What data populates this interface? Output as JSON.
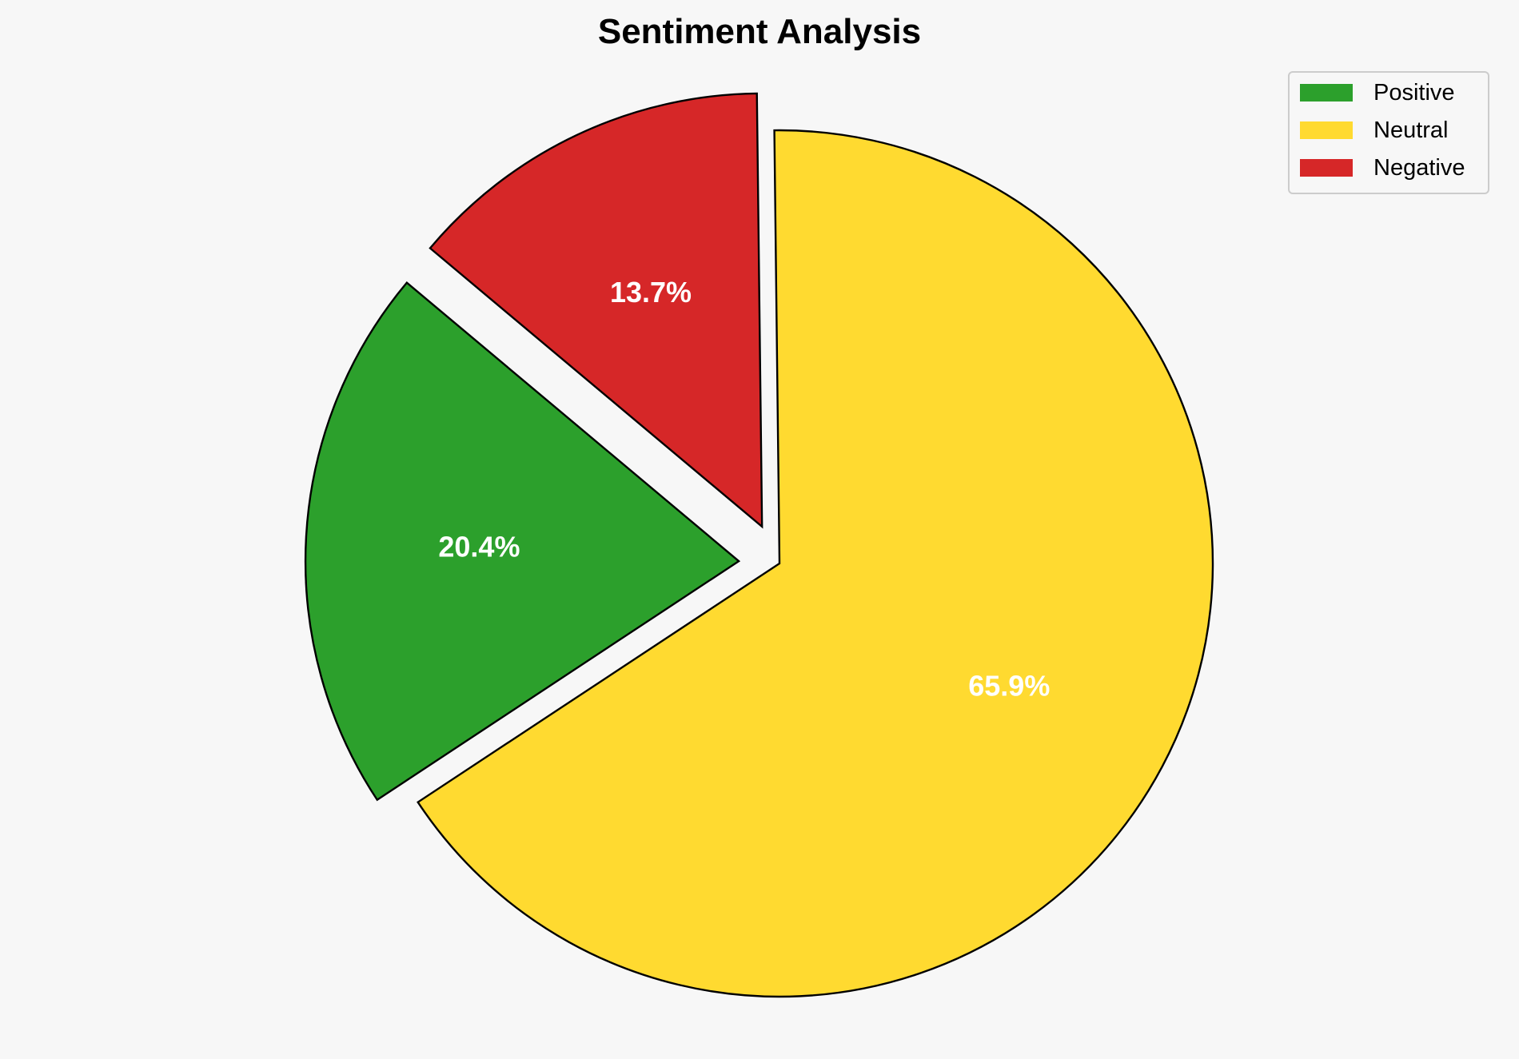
{
  "chart_data": {
    "type": "pie",
    "title": "Sentiment Analysis",
    "categories": [
      "Positive",
      "Neutral",
      "Negative"
    ],
    "values": [
      20.4,
      65.9,
      13.7
    ],
    "labels": [
      "20.4%",
      "65.9%",
      "13.7%"
    ],
    "colors": [
      "#2ca02c",
      "#ffda30",
      "#d62728"
    ],
    "exploded": [
      true,
      false,
      true
    ],
    "start_angle_deg": 140,
    "direction": "counterclockwise",
    "legend": {
      "entries": [
        "Positive",
        "Neutral",
        "Negative"
      ],
      "placement": "top-right"
    },
    "background": "#f7f7f7",
    "edge_color": "#000000",
    "label_color": "#ffffff"
  }
}
